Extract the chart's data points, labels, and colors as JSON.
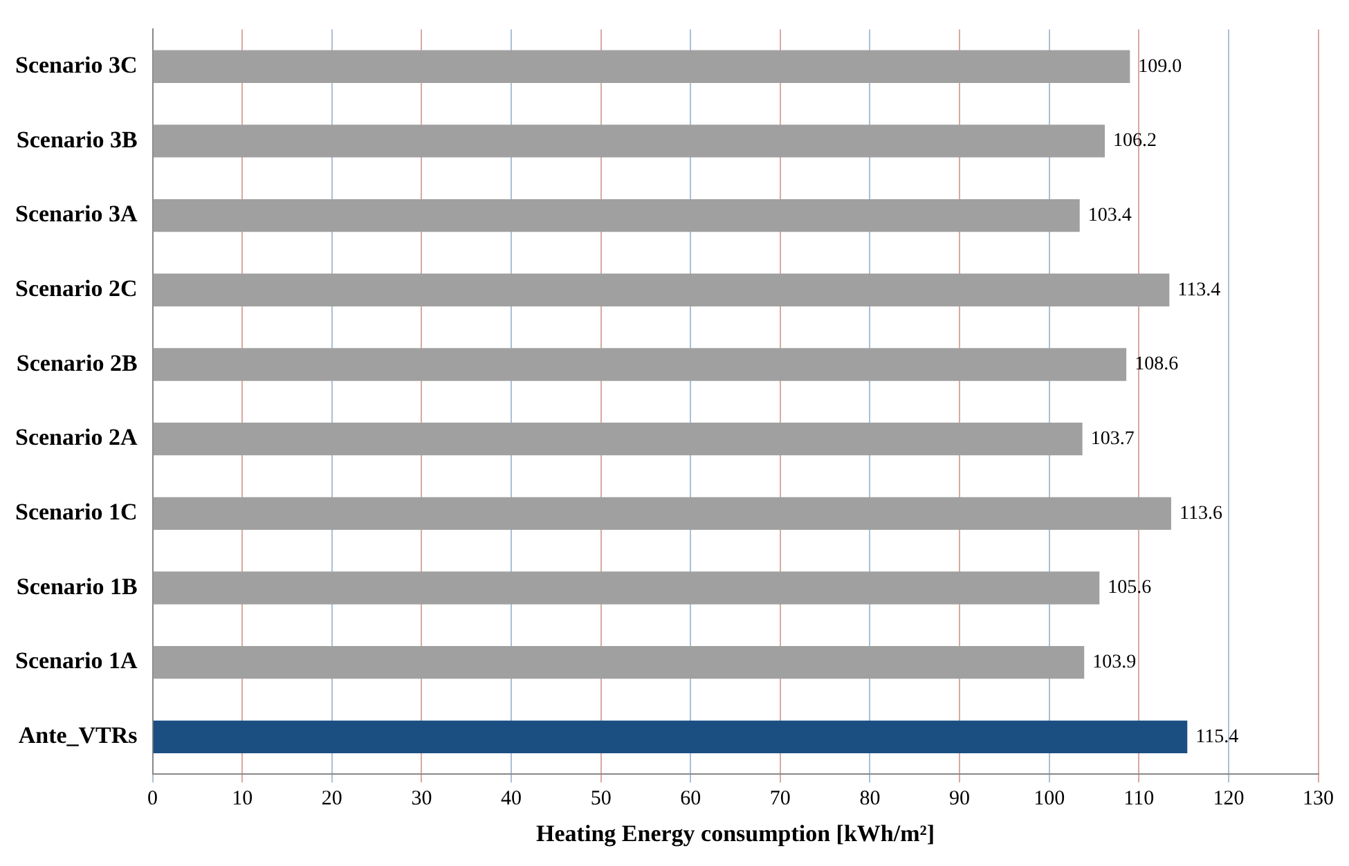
{
  "chart_data": {
    "type": "bar",
    "orientation": "horizontal",
    "xlabel": "Heating Energy consumption [kWh/m²]",
    "categories": [
      "Scenario 3C",
      "Scenario 3B",
      "Scenario 3A",
      "Scenario 2C",
      "Scenario 2B",
      "Scenario 2A",
      "Scenario 1C",
      "Scenario 1B",
      "Scenario 1A",
      "Ante_VTRs"
    ],
    "values": [
      109.0,
      106.2,
      103.4,
      113.4,
      108.6,
      103.7,
      113.6,
      105.6,
      103.9,
      115.4
    ],
    "colors": [
      "#a0a0a0",
      "#a0a0a0",
      "#a0a0a0",
      "#a0a0a0",
      "#a0a0a0",
      "#a0a0a0",
      "#a0a0a0",
      "#a0a0a0",
      "#a0a0a0",
      "#1b4f82"
    ],
    "value_labels": [
      "109.0",
      "106.2",
      "103.4",
      "113.4",
      "108.6",
      "103.7",
      "113.6",
      "105.6",
      "103.9",
      "115.4"
    ],
    "xlim": [
      0,
      130
    ],
    "xticks": [
      0,
      10,
      20,
      30,
      40,
      50,
      60,
      70,
      80,
      90,
      100,
      110,
      120,
      130
    ],
    "grid": "x",
    "legend": false
  }
}
